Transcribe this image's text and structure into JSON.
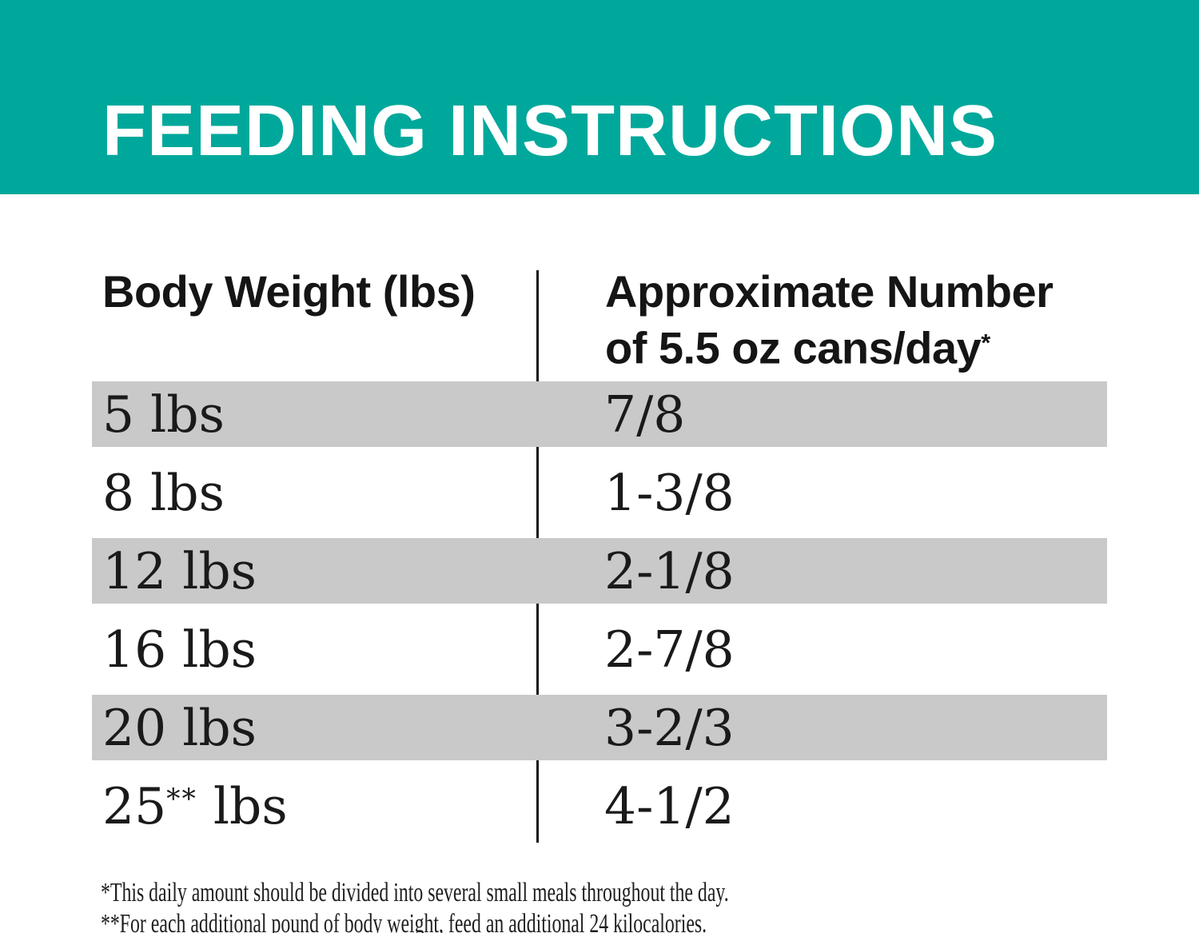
{
  "colors": {
    "banner_bg": "#00a89b",
    "row_stripe": "#c9c9c9",
    "heading_text": "#151515",
    "title_text": "#ffffff"
  },
  "banner": {
    "title": "FEEDING INSTRUCTIONS"
  },
  "table": {
    "columns": {
      "col1": "Body Weight (lbs)",
      "col2_line1": "Approximate Number",
      "col2_line2": "of 5.5 oz cans/day",
      "col2_marker": "*"
    },
    "rows": [
      {
        "weight": "5 lbs",
        "cans": "7/8",
        "shaded": true
      },
      {
        "weight": "8 lbs",
        "cans": "1-3/8",
        "shaded": false
      },
      {
        "weight": "12 lbs",
        "cans": "2-1/8",
        "shaded": true
      },
      {
        "weight": "16 lbs",
        "cans": "2-7/8",
        "shaded": false
      },
      {
        "weight": "20 lbs",
        "cans": "3-2/3",
        "shaded": true
      },
      {
        "weight": "25** lbs",
        "cans": "4-1/2",
        "shaded": false
      }
    ]
  },
  "footnotes": [
    "*This daily amount should be divided into several small meals throughout the day.",
    "**For each additional pound of body weight, feed an additional 24 kilocalories."
  ],
  "chart_data": {
    "type": "table",
    "title": "FEEDING INSTRUCTIONS",
    "columns": [
      "Body Weight (lbs)",
      "Approximate Number of 5.5 oz cans/day*"
    ],
    "rows": [
      [
        "5 lbs",
        "7/8"
      ],
      [
        "8 lbs",
        "1-3/8"
      ],
      [
        "12 lbs",
        "2-1/8"
      ],
      [
        "16 lbs",
        "2-7/8"
      ],
      [
        "20 lbs",
        "3-2/3"
      ],
      [
        "25** lbs",
        "4-1/2"
      ]
    ],
    "annotations": [
      "*This daily amount should be divided into several small meals throughout the day.",
      "**For each additional pound of body weight, feed an additional 24 kilocalories."
    ]
  }
}
